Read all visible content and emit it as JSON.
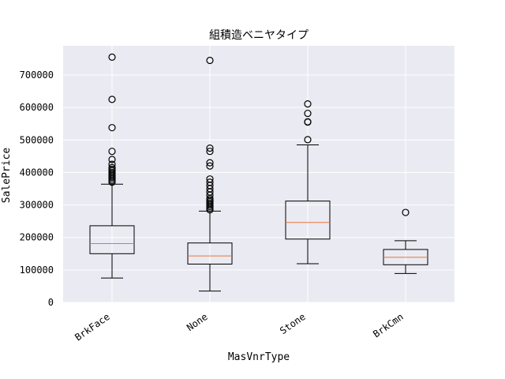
{
  "chart_data": {
    "type": "box",
    "title": "組積造ベニヤタイプ",
    "xlabel": "MasVnrType",
    "ylabel": "SalePrice",
    "ylim": [
      0,
      790000
    ],
    "y_ticks": [
      0,
      100000,
      200000,
      300000,
      400000,
      500000,
      600000,
      700000
    ],
    "y_tick_labels": [
      "0",
      "100000",
      "200000",
      "300000",
      "400000",
      "500000",
      "600000",
      "700000"
    ],
    "grid": true,
    "categories": [
      "BrkFace",
      "None",
      "Stone",
      "BrkCmn"
    ],
    "boxes": [
      {
        "category": "BrkFace",
        "whisker_low": 75000,
        "q1": 150000,
        "median": 181000,
        "q3": 236000,
        "whisker_high": 364000,
        "fliers": [
          370000,
          375000,
          380000,
          385000,
          390000,
          395000,
          400000,
          405000,
          410000,
          415000,
          425000,
          440000,
          465000,
          538000,
          625000,
          755000
        ]
      },
      {
        "category": "None",
        "whisker_low": 35000,
        "q1": 118000,
        "median": 143000,
        "q3": 183000,
        "whisker_high": 281000,
        "fliers": [
          285000,
          290000,
          295000,
          300000,
          305000,
          310000,
          315000,
          320000,
          330000,
          340000,
          350000,
          360000,
          370000,
          380000,
          420000,
          430000,
          465000,
          475000,
          745000
        ]
      },
      {
        "category": "Stone",
        "whisker_low": 119000,
        "q1": 195000,
        "median": 246000,
        "q3": 312000,
        "whisker_high": 485000,
        "fliers": [
          501000,
          555000,
          556000,
          582000,
          611000
        ]
      },
      {
        "category": "BrkCmn",
        "whisker_low": 89000,
        "q1": 116000,
        "median": 139000,
        "q3": 163000,
        "whisker_high": 190000,
        "fliers": [
          277000
        ]
      }
    ],
    "colors": {
      "plot_background": "#eaeaf2",
      "grid": "#ffffff",
      "box": "#000000",
      "median": "#e8743b"
    }
  }
}
